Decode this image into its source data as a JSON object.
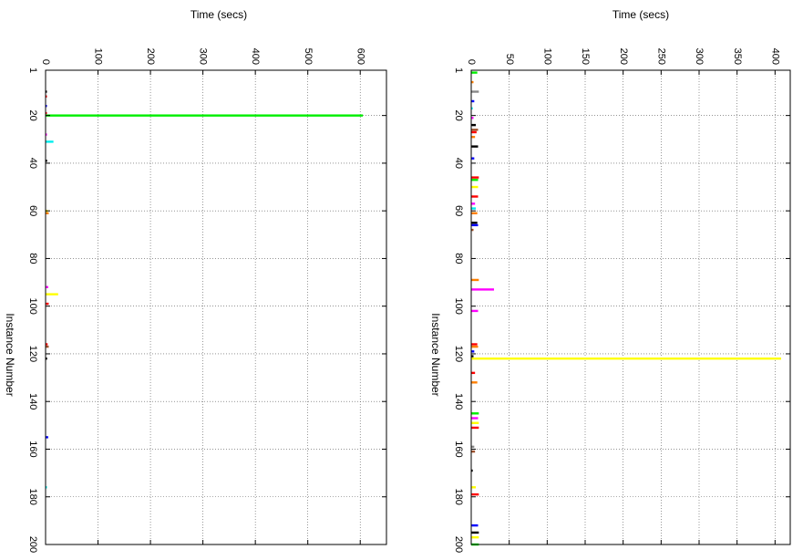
{
  "chart_data": [
    {
      "type": "bar",
      "orientation": "rotated-90",
      "title": "",
      "xlabel": "Instance Number",
      "ylabel": "Time (secs)",
      "xlim": [
        1,
        200
      ],
      "ylim": [
        0,
        650
      ],
      "x_ticks": [
        1,
        20,
        40,
        60,
        80,
        100,
        120,
        140,
        160,
        180,
        200
      ],
      "y_ticks": [
        0,
        100,
        200,
        300,
        400,
        500,
        600
      ],
      "grid": true,
      "legend": "none",
      "bars": [
        {
          "x": 10,
          "y": 1,
          "color": "#000000"
        },
        {
          "x": 12,
          "y": 1,
          "color": "#ff0000"
        },
        {
          "x": 16,
          "y": 1,
          "color": "#0000ff"
        },
        {
          "x": 19,
          "y": 2,
          "color": "#ff0000"
        },
        {
          "x": 20,
          "y": 605,
          "color": "#00ee00"
        },
        {
          "x": 28,
          "y": 2,
          "color": "#ff00ff"
        },
        {
          "x": 31,
          "y": 15,
          "color": "#00eeee"
        },
        {
          "x": 39,
          "y": 3,
          "color": "#000000"
        },
        {
          "x": 60,
          "y": 4,
          "color": "#ffff00"
        },
        {
          "x": 61,
          "y": 6,
          "color": "#ff7f00"
        },
        {
          "x": 92,
          "y": 5,
          "color": "#ff00ff"
        },
        {
          "x": 95,
          "y": 24,
          "color": "#ffff00"
        },
        {
          "x": 99,
          "y": 6,
          "color": "#ff0000"
        },
        {
          "x": 116,
          "y": 4,
          "color": "#ff0000"
        },
        {
          "x": 117,
          "y": 6,
          "color": "#a0522d"
        },
        {
          "x": 122,
          "y": 3,
          "color": "#000000"
        },
        {
          "x": 155,
          "y": 5,
          "color": "#0000ff"
        },
        {
          "x": 176,
          "y": 1,
          "color": "#00eeee"
        }
      ]
    },
    {
      "type": "bar",
      "orientation": "rotated-90",
      "title": "",
      "xlabel": "Instance Number",
      "ylabel": "Time (secs)",
      "xlim": [
        1,
        200
      ],
      "ylim": [
        0,
        420
      ],
      "x_ticks": [
        1,
        20,
        40,
        60,
        80,
        100,
        120,
        140,
        160,
        180,
        200
      ],
      "y_ticks": [
        0,
        50,
        100,
        150,
        200,
        250,
        300,
        350,
        400
      ],
      "grid": true,
      "legend": "none",
      "bars": [
        {
          "x": 2,
          "y": 8,
          "color": "#00ee00"
        },
        {
          "x": 6,
          "y": 3,
          "color": "#ff7f00"
        },
        {
          "x": 10,
          "y": 10,
          "color": "#888888"
        },
        {
          "x": 14,
          "y": 4,
          "color": "#0000ff"
        },
        {
          "x": 17,
          "y": 2,
          "color": "#00eeee"
        },
        {
          "x": 21,
          "y": 3,
          "color": "#ff00ff"
        },
        {
          "x": 24,
          "y": 6,
          "color": "#000000"
        },
        {
          "x": 26,
          "y": 9,
          "color": "#a0522d"
        },
        {
          "x": 27,
          "y": 7,
          "color": "#ff0000"
        },
        {
          "x": 29,
          "y": 5,
          "color": "#ff7f00"
        },
        {
          "x": 33,
          "y": 9,
          "color": "#000000"
        },
        {
          "x": 38,
          "y": 4,
          "color": "#0000ff"
        },
        {
          "x": 46,
          "y": 10,
          "color": "#ff0000"
        },
        {
          "x": 47,
          "y": 9,
          "color": "#00ee00"
        },
        {
          "x": 50,
          "y": 9,
          "color": "#ffff00"
        },
        {
          "x": 54,
          "y": 9,
          "color": "#ff0000"
        },
        {
          "x": 57,
          "y": 5,
          "color": "#ff00ff"
        },
        {
          "x": 59,
          "y": 6,
          "color": "#00eeee"
        },
        {
          "x": 61,
          "y": 8,
          "color": "#ff7f00"
        },
        {
          "x": 65,
          "y": 8,
          "color": "#000000"
        },
        {
          "x": 66,
          "y": 9,
          "color": "#0000ff"
        },
        {
          "x": 68,
          "y": 3,
          "color": "#a0522d"
        },
        {
          "x": 89,
          "y": 10,
          "color": "#ff7f00"
        },
        {
          "x": 93,
          "y": 30,
          "color": "#ff00ff"
        },
        {
          "x": 102,
          "y": 9,
          "color": "#ff00ff"
        },
        {
          "x": 116,
          "y": 8,
          "color": "#ff0000"
        },
        {
          "x": 117,
          "y": 9,
          "color": "#ff7f00"
        },
        {
          "x": 119,
          "y": 4,
          "color": "#0000ff"
        },
        {
          "x": 121,
          "y": 3,
          "color": "#000000"
        },
        {
          "x": 122,
          "y": 408,
          "color": "#ffff00"
        },
        {
          "x": 128,
          "y": 5,
          "color": "#ff0000"
        },
        {
          "x": 132,
          "y": 8,
          "color": "#ff7f00"
        },
        {
          "x": 145,
          "y": 10,
          "color": "#00ee00"
        },
        {
          "x": 147,
          "y": 9,
          "color": "#ff00ff"
        },
        {
          "x": 149,
          "y": 10,
          "color": "#ffff00"
        },
        {
          "x": 151,
          "y": 10,
          "color": "#ff0000"
        },
        {
          "x": 159,
          "y": 4,
          "color": "#888888"
        },
        {
          "x": 161,
          "y": 5,
          "color": "#a0522d"
        },
        {
          "x": 169,
          "y": 2,
          "color": "#000000"
        },
        {
          "x": 176,
          "y": 6,
          "color": "#ffff00"
        },
        {
          "x": 179,
          "y": 10,
          "color": "#ff0000"
        },
        {
          "x": 192,
          "y": 9,
          "color": "#0000ff"
        },
        {
          "x": 195,
          "y": 10,
          "color": "#000000"
        },
        {
          "x": 197,
          "y": 10,
          "color": "#ffff00"
        },
        {
          "x": 200,
          "y": 10,
          "color": "#00ee00"
        }
      ]
    }
  ]
}
